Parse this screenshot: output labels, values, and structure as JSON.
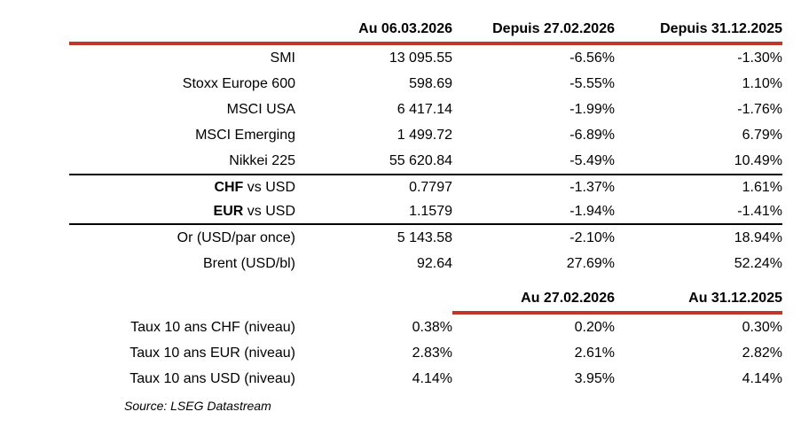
{
  "colors": {
    "accent_red": "#c5342b",
    "separator_black": "#000000"
  },
  "market_table": {
    "headers": [
      "Au 06.03.2026",
      "Depuis 27.02.2026",
      "Depuis 31.12.2025"
    ],
    "index_rows": [
      {
        "label": "SMI",
        "value": "13 095.55",
        "chg_week": "-6.56%",
        "chg_ytd": "-1.30%"
      },
      {
        "label": "Stoxx Europe 600",
        "value": "598.69",
        "chg_week": "-5.55%",
        "chg_ytd": "1.10%"
      },
      {
        "label": "MSCI USA",
        "value": "6 417.14",
        "chg_week": "-1.99%",
        "chg_ytd": "-1.76%"
      },
      {
        "label": "MSCI Emerging",
        "value": "1 499.72",
        "chg_week": "-6.89%",
        "chg_ytd": "6.79%"
      },
      {
        "label": "Nikkei 225",
        "value": "55 620.84",
        "chg_week": "-5.49%",
        "chg_ytd": "10.49%"
      }
    ],
    "fx_rows": [
      {
        "label_bold": "CHF",
        "label_rest": " vs USD",
        "value": "0.7797",
        "chg_week": "-1.37%",
        "chg_ytd": "1.61%"
      },
      {
        "label_bold": "EUR",
        "label_rest": " vs USD",
        "value": "1.1579",
        "chg_week": "-1.94%",
        "chg_ytd": "-1.41%"
      }
    ],
    "commodity_rows": [
      {
        "label": "Or (USD/par once)",
        "value": "5 143.58",
        "chg_week": "-2.10%",
        "chg_ytd": "18.94%"
      },
      {
        "label": "Brent (USD/bl)",
        "value": "92.64",
        "chg_week": "27.69%",
        "chg_ytd": "52.24%"
      }
    ]
  },
  "rates_table": {
    "headers": [
      "Au 27.02.2026",
      "Au 31.12.2025"
    ],
    "rows": [
      {
        "label": "Taux 10 ans CHF (niveau)",
        "value": "0.38%",
        "prev_week": "0.20%",
        "prev_year": "0.30%"
      },
      {
        "label": "Taux 10 ans EUR (niveau)",
        "value": "2.83%",
        "prev_week": "2.61%",
        "prev_year": "2.82%"
      },
      {
        "label": "Taux 10 ans USD (niveau)",
        "value": "4.14%",
        "prev_week": "3.95%",
        "prev_year": "4.14%"
      }
    ]
  },
  "footer": {
    "source": "Source: LSEG Datastream"
  }
}
